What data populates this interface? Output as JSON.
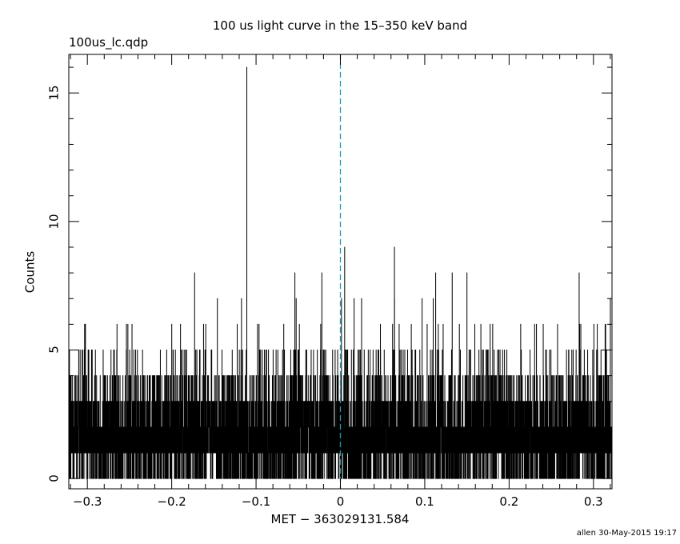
{
  "header": {
    "file_name": "100us_lc.qdp"
  },
  "footer": {
    "stamp": "allen 30-May-2015 19:17"
  },
  "chart_data": {
    "type": "line",
    "style": "histogram",
    "title": "100 us light curve in the 15–350 keV band",
    "xlabel": "MET − 363029131.584",
    "ylabel": "Counts",
    "xlim": [
      -0.322,
      0.322
    ],
    "ylim": [
      -0.4,
      16.5
    ],
    "x_ticks": [
      -0.3,
      -0.2,
      -0.1,
      0,
      0.1,
      0.2,
      0.3
    ],
    "x_tick_labels": [
      "−0.3",
      "−0.2",
      "−0.1",
      "0",
      "0.1",
      "0.2",
      "0.3"
    ],
    "y_ticks": [
      0,
      5,
      10,
      15
    ],
    "y_tick_labels": [
      "0",
      "5",
      "10",
      "15"
    ],
    "grid": false,
    "bin_width": 0.0001,
    "series_color": "#000000",
    "reference_line": {
      "x": 0,
      "color": "#1a9ab0",
      "style": "dashed"
    },
    "noted_peaks": [
      {
        "x": -0.111,
        "y": 16
      },
      {
        "x": 0.005,
        "y": 9
      },
      {
        "x": 0.064,
        "y": 9
      },
      {
        "x": -0.054,
        "y": 8
      },
      {
        "x": -0.022,
        "y": 8
      },
      {
        "x": 0.15,
        "y": 8
      },
      {
        "x": 0.283,
        "y": 8
      },
      {
        "x": -0.2,
        "y": 6
      },
      {
        "x": 0.11,
        "y": 7
      },
      {
        "x": 0.32,
        "y": 7
      }
    ]
  }
}
